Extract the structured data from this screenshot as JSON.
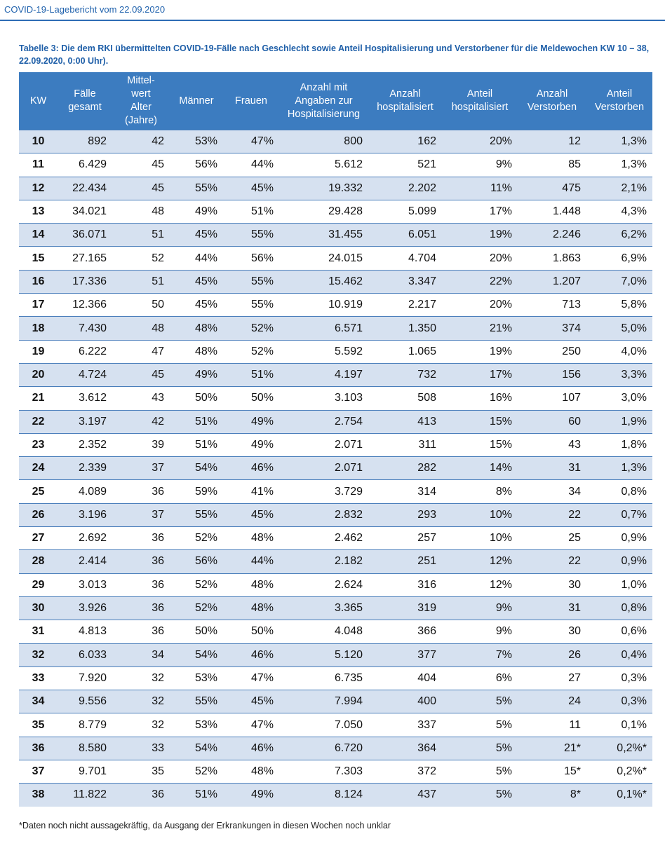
{
  "header": {
    "title": "COVID-19-Lagebericht vom 22.09.2020"
  },
  "table": {
    "caption": "Tabelle 3: Die dem RKI übermittelten COVID-19-Fälle nach Geschlecht sowie Anteil Hospitalisierung und Verstorbener für die Meldewochen KW 10 – 38, 22.09.2020, 0:00 Uhr).",
    "columns": [
      "KW",
      "Fälle\ngesamt",
      "Mittel-\nwert\nAlter\n(Jahre)",
      "Männer",
      "Frauen",
      "Anzahl mit\nAngaben zur\nHospitalisierung",
      "Anzahl\nhospitalisiert",
      "Anteil\nhospitalisiert",
      "Anzahl\nVerstorben",
      "Anteil\nVerstorben"
    ],
    "rows": [
      [
        "10",
        "892",
        "42",
        "53%",
        "47%",
        "800",
        "162",
        "20%",
        "12",
        "1,3%"
      ],
      [
        "11",
        "6.429",
        "45",
        "56%",
        "44%",
        "5.612",
        "521",
        "9%",
        "85",
        "1,3%"
      ],
      [
        "12",
        "22.434",
        "45",
        "55%",
        "45%",
        "19.332",
        "2.202",
        "11%",
        "475",
        "2,1%"
      ],
      [
        "13",
        "34.021",
        "48",
        "49%",
        "51%",
        "29.428",
        "5.099",
        "17%",
        "1.448",
        "4,3%"
      ],
      [
        "14",
        "36.071",
        "51",
        "45%",
        "55%",
        "31.455",
        "6.051",
        "19%",
        "2.246",
        "6,2%"
      ],
      [
        "15",
        "27.165",
        "52",
        "44%",
        "56%",
        "24.015",
        "4.704",
        "20%",
        "1.863",
        "6,9%"
      ],
      [
        "16",
        "17.336",
        "51",
        "45%",
        "55%",
        "15.462",
        "3.347",
        "22%",
        "1.207",
        "7,0%"
      ],
      [
        "17",
        "12.366",
        "50",
        "45%",
        "55%",
        "10.919",
        "2.217",
        "20%",
        "713",
        "5,8%"
      ],
      [
        "18",
        "7.430",
        "48",
        "48%",
        "52%",
        "6.571",
        "1.350",
        "21%",
        "374",
        "5,0%"
      ],
      [
        "19",
        "6.222",
        "47",
        "48%",
        "52%",
        "5.592",
        "1.065",
        "19%",
        "250",
        "4,0%"
      ],
      [
        "20",
        "4.724",
        "45",
        "49%",
        "51%",
        "4.197",
        "732",
        "17%",
        "156",
        "3,3%"
      ],
      [
        "21",
        "3.612",
        "43",
        "50%",
        "50%",
        "3.103",
        "508",
        "16%",
        "107",
        "3,0%"
      ],
      [
        "22",
        "3.197",
        "42",
        "51%",
        "49%",
        "2.754",
        "413",
        "15%",
        "60",
        "1,9%"
      ],
      [
        "23",
        "2.352",
        "39",
        "51%",
        "49%",
        "2.071",
        "311",
        "15%",
        "43",
        "1,8%"
      ],
      [
        "24",
        "2.339",
        "37",
        "54%",
        "46%",
        "2.071",
        "282",
        "14%",
        "31",
        "1,3%"
      ],
      [
        "25",
        "4.089",
        "36",
        "59%",
        "41%",
        "3.729",
        "314",
        "8%",
        "34",
        "0,8%"
      ],
      [
        "26",
        "3.196",
        "37",
        "55%",
        "45%",
        "2.832",
        "293",
        "10%",
        "22",
        "0,7%"
      ],
      [
        "27",
        "2.692",
        "36",
        "52%",
        "48%",
        "2.462",
        "257",
        "10%",
        "25",
        "0,9%"
      ],
      [
        "28",
        "2.414",
        "36",
        "56%",
        "44%",
        "2.182",
        "251",
        "12%",
        "22",
        "0,9%"
      ],
      [
        "29",
        "3.013",
        "36",
        "52%",
        "48%",
        "2.624",
        "316",
        "12%",
        "30",
        "1,0%"
      ],
      [
        "30",
        "3.926",
        "36",
        "52%",
        "48%",
        "3.365",
        "319",
        "9%",
        "31",
        "0,8%"
      ],
      [
        "31",
        "4.813",
        "36",
        "50%",
        "50%",
        "4.048",
        "366",
        "9%",
        "30",
        "0,6%"
      ],
      [
        "32",
        "6.033",
        "34",
        "54%",
        "46%",
        "5.120",
        "377",
        "7%",
        "26",
        "0,4%"
      ],
      [
        "33",
        "7.920",
        "32",
        "53%",
        "47%",
        "6.735",
        "404",
        "6%",
        "27",
        "0,3%"
      ],
      [
        "34",
        "9.556",
        "32",
        "55%",
        "45%",
        "7.994",
        "400",
        "5%",
        "24",
        "0,3%"
      ],
      [
        "35",
        "8.779",
        "32",
        "53%",
        "47%",
        "7.050",
        "337",
        "5%",
        "11",
        "0,1%"
      ],
      [
        "36",
        "8.580",
        "33",
        "54%",
        "46%",
        "6.720",
        "364",
        "5%",
        "21*",
        "0,2%*"
      ],
      [
        "37",
        "9.701",
        "35",
        "52%",
        "48%",
        "7.303",
        "372",
        "5%",
        "15*",
        "0,2%*"
      ],
      [
        "38",
        "11.822",
        "36",
        "51%",
        "49%",
        "8.124",
        "437",
        "5%",
        "8*",
        "0,1%*"
      ]
    ],
    "footnote": "*Daten noch nicht aussagekräftig, da Ausgang der Erkrankungen in diesen Wochen noch unklar"
  }
}
